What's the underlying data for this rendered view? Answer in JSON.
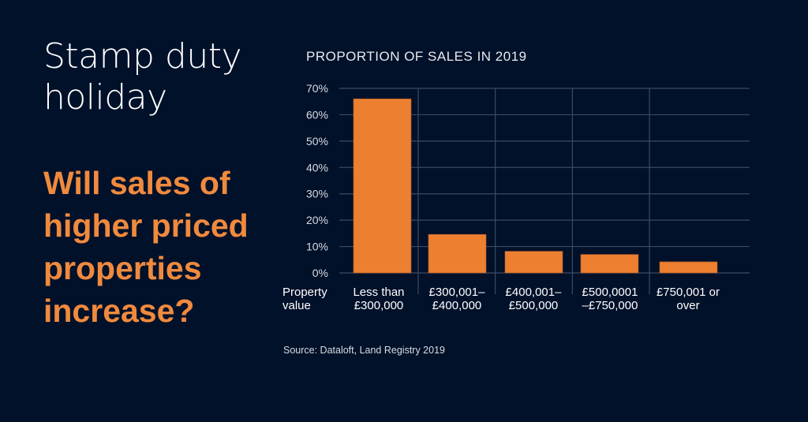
{
  "headline": {
    "title_lines": [
      "Stamp duty",
      "holiday"
    ],
    "question_lines": [
      "Will sales of",
      "higher priced",
      "properties",
      "increase?"
    ]
  },
  "source": "Source:  Dataloft, Land Registry 2019",
  "chart_data": {
    "type": "bar",
    "title": "PROPORTION OF SALES IN 2019",
    "xlabel_lines": [
      "Property",
      "value"
    ],
    "ylabel": "",
    "categories": [
      [
        "Less than",
        "£300,000"
      ],
      [
        "£300,001–",
        "£400,000"
      ],
      [
        "£400,001–",
        "£500,000"
      ],
      [
        "£500,0001",
        "–£750,000"
      ],
      [
        "£750,001 or",
        "over"
      ]
    ],
    "values": [
      66,
      14.6,
      8.2,
      7.0,
      4.2
    ],
    "unit": "%",
    "ylim": [
      0,
      70
    ],
    "yticks": [
      "0%",
      "10%",
      "20%",
      "30%",
      "40%",
      "50%",
      "60%",
      "70%"
    ],
    "grid": true,
    "bar_color": "#ed7f31",
    "grid_color": "#3c4a60"
  }
}
